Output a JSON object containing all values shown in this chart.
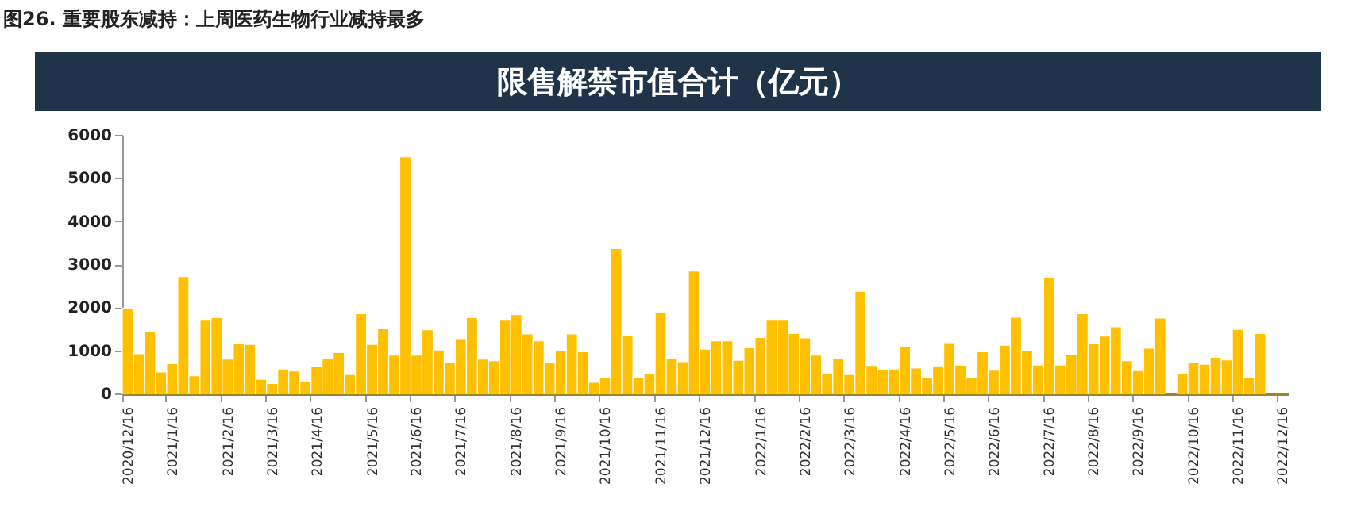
{
  "chart_data": {
    "type": "bar",
    "title": "限售解禁市值合计（亿元）",
    "annotations": [
      "图26. 重要股东减持：上周医药生物行业减持最多"
    ],
    "categories": [
      "2020/12/16",
      null,
      null,
      null,
      "2021/1/16",
      null,
      null,
      null,
      null,
      "2021/2/16",
      null,
      null,
      null,
      "2021/3/16",
      null,
      null,
      null,
      "2021/4/16",
      null,
      null,
      null,
      null,
      "2021/5/16",
      null,
      null,
      null,
      "2021/6/16",
      null,
      null,
      null,
      "2021/7/16",
      null,
      null,
      null,
      null,
      "2021/8/16",
      null,
      null,
      null,
      "2021/9/16",
      null,
      null,
      null,
      "2021/10/16",
      null,
      null,
      null,
      null,
      "2021/11/16",
      null,
      null,
      null,
      "2021/12/16",
      null,
      null,
      null,
      null,
      "2022/1/16",
      null,
      null,
      null,
      "2022/2/16",
      null,
      null,
      null,
      "2022/3/16",
      null,
      null,
      null,
      null,
      "2022/4/16",
      null,
      null,
      null,
      "2022/5/16",
      null,
      null,
      null,
      "2022/6/16",
      null,
      null,
      null,
      null,
      "2022/7/16",
      null,
      null,
      null,
      "2022/8/16",
      null,
      null,
      null,
      "2022/9/16",
      null,
      null,
      null,
      null,
      "2022/10/16",
      null,
      null,
      null,
      "2022/11/16",
      null,
      null,
      null,
      "2022/12/16"
    ],
    "values": [
      1980,
      920,
      1430,
      500,
      690,
      2710,
      410,
      1700,
      1760,
      800,
      1170,
      1140,
      330,
      230,
      570,
      520,
      270,
      630,
      810,
      950,
      440,
      1850,
      1140,
      1500,
      890,
      5490,
      890,
      1480,
      1010,
      730,
      1270,
      1760,
      800,
      760,
      1700,
      1830,
      1380,
      1220,
      730,
      1000,
      1380,
      970,
      260,
      370,
      3360,
      1340,
      370,
      470,
      1880,
      820,
      740,
      2840,
      1030,
      1220,
      1220,
      770,
      1060,
      1300,
      1700,
      1700,
      1390,
      1290,
      890,
      470,
      820,
      440,
      2370,
      650,
      550,
      570,
      1090,
      590,
      380,
      640,
      1180,
      660,
      370,
      970,
      540,
      1120,
      1770,
      1000,
      660,
      2690,
      660,
      900,
      1850,
      1160,
      1330,
      1550,
      760,
      530,
      1050,
      1750,
      null,
      470,
      730,
      680,
      840,
      780,
      1490,
      370,
      1390,
      null,
      null
    ],
    "color": "#ffc000",
    "ylim": [
      0,
      6000
    ],
    "yticks": [
      0,
      1000,
      2000,
      3000,
      4000,
      5000,
      6000
    ],
    "grid": false
  }
}
